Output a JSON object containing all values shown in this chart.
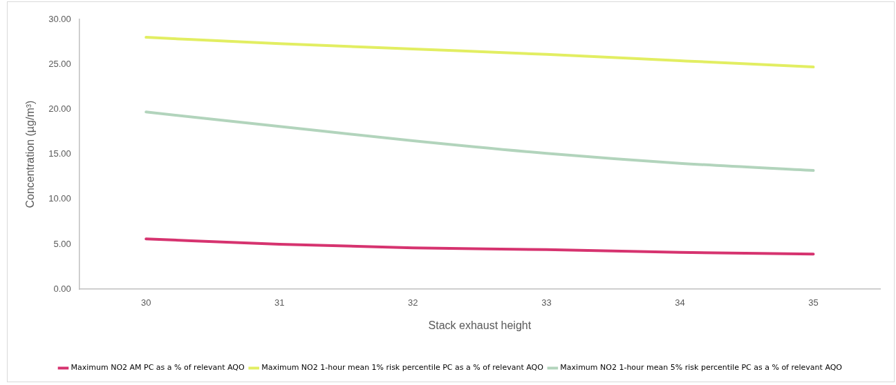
{
  "chart_data": {
    "type": "line",
    "xlabel": "Stack exhaust height",
    "ylabel": "Concentration (µg/m³)",
    "categories": [
      "30",
      "31",
      "32",
      "33",
      "34",
      "35"
    ],
    "series": [
      {
        "name": "Maximum NO2 AM PC as a % of relevant AQO",
        "color": "#d6336f",
        "values": [
          5.6,
          5.0,
          4.6,
          4.4,
          4.1,
          3.9
        ]
      },
      {
        "name": "Maximum NO2 1-hour mean 1% risk percentile PC as a % of relevant AQO",
        "color": "#e2ee62",
        "values": [
          28.0,
          27.3,
          26.7,
          26.1,
          25.4,
          24.7
        ]
      },
      {
        "name": "Maximum NO2 1-hour mean 5% risk percentile PC as a % of relevant AQO",
        "color": "#b2d4bc",
        "values": [
          19.7,
          18.1,
          16.5,
          15.1,
          14.0,
          13.2
        ]
      }
    ],
    "ylim": [
      0,
      30
    ],
    "yticks": [
      {
        "value": 0,
        "label": "0.00"
      },
      {
        "value": 5,
        "label": "5.00"
      },
      {
        "value": 10,
        "label": "10.00"
      },
      {
        "value": 15,
        "label": "15.00"
      },
      {
        "value": 20,
        "label": "20.00"
      },
      {
        "value": 25,
        "label": "25.00"
      },
      {
        "value": 30,
        "label": "30.00"
      }
    ],
    "grid": false,
    "legend": "bottom",
    "marker": "none",
    "line_style": "solid"
  }
}
